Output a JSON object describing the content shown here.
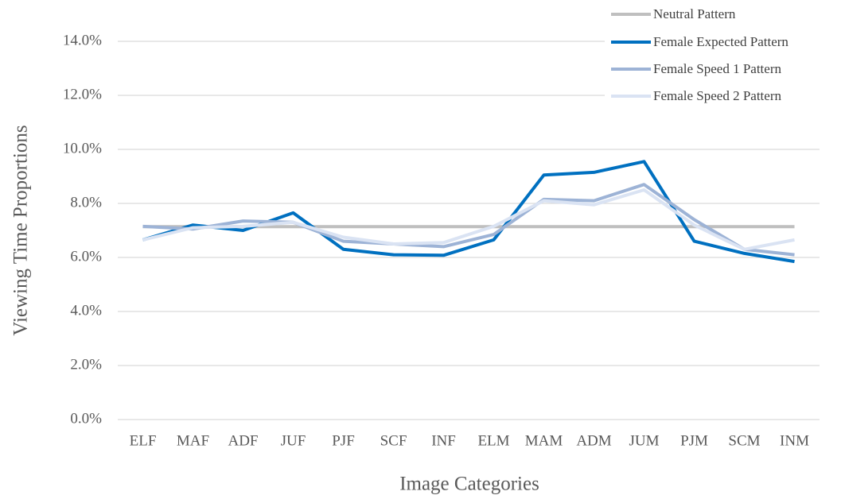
{
  "chart_data": {
    "type": "line",
    "x_label": "Image Categories",
    "y_label": "Viewing Time Proportions",
    "categories": [
      "ELF",
      "MAF",
      "ADF",
      "JUF",
      "PJF",
      "SCF",
      "INF",
      "ELM",
      "MAM",
      "ADM",
      "JUM",
      "PJM",
      "SCM",
      "INM"
    ],
    "series": [
      {
        "name": "Neutral Pattern",
        "color": "#bfbfbf",
        "values": [
          7.14,
          7.14,
          7.14,
          7.14,
          7.14,
          7.14,
          7.14,
          7.14,
          7.14,
          7.14,
          7.14,
          7.14,
          7.14,
          7.14
        ]
      },
      {
        "name": "Female Expected Pattern",
        "color": "#0070c0",
        "values": [
          6.65,
          7.2,
          7.0,
          7.65,
          6.3,
          6.1,
          6.08,
          6.65,
          9.05,
          9.15,
          9.55,
          6.6,
          6.15,
          5.85
        ]
      },
      {
        "name": "Female Speed 1 Pattern",
        "color": "#9db3d6",
        "values": [
          7.15,
          7.05,
          7.35,
          7.3,
          6.6,
          6.5,
          6.4,
          6.85,
          8.15,
          8.1,
          8.7,
          7.4,
          6.3,
          6.1
        ]
      },
      {
        "name": "Female Speed 2 Pattern",
        "color": "#dae3f3",
        "values": [
          6.65,
          7.1,
          7.15,
          7.3,
          6.75,
          6.5,
          6.55,
          7.15,
          8.1,
          7.95,
          8.5,
          7.2,
          6.3,
          6.65
        ]
      }
    ],
    "ylim": [
      0,
      14
    ],
    "yticks": [
      {
        "value": 0,
        "label": "0.0%"
      },
      {
        "value": 2,
        "label": "2.0%"
      },
      {
        "value": 4,
        "label": "4.0%"
      },
      {
        "value": 6,
        "label": "6.0%"
      },
      {
        "value": 8,
        "label": "8.0%"
      },
      {
        "value": 10,
        "label": "10.0%"
      },
      {
        "value": 12,
        "label": "12.0%"
      },
      {
        "value": 14,
        "label": "14.0%"
      }
    ],
    "grid": true,
    "legend": "top-right"
  }
}
